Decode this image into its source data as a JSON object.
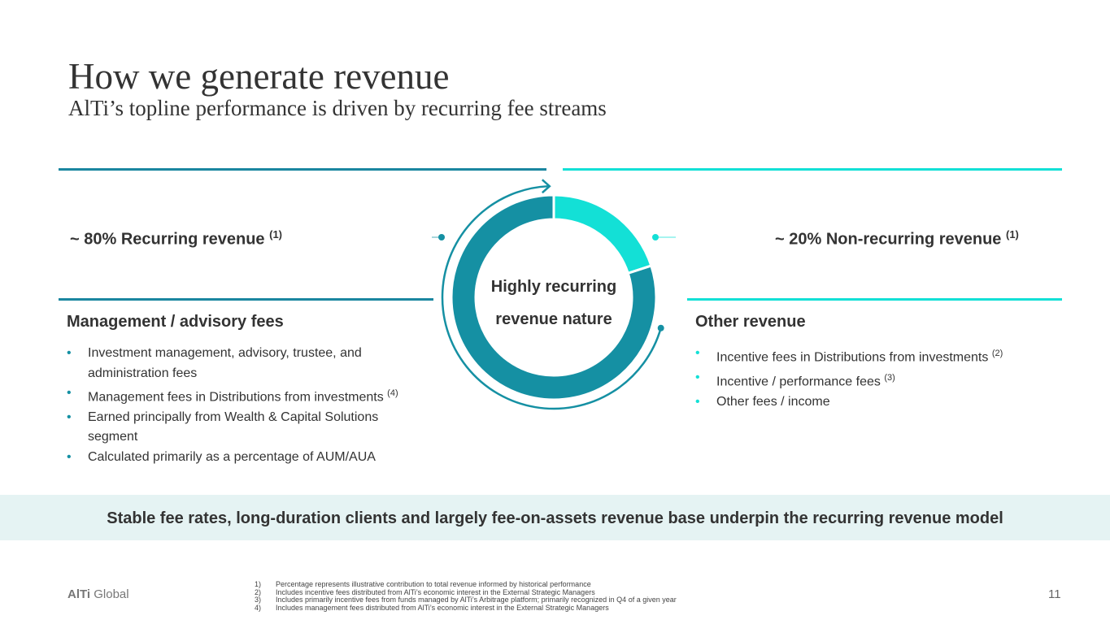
{
  "header": {
    "title": "How we generate revenue",
    "subtitle": "AlTi’s topline performance is driven by recurring fee streams"
  },
  "left": {
    "label": "~ 80% Recurring revenue",
    "label_note": "(1)",
    "heading": "Management / advisory fees",
    "bullets": [
      {
        "text": "Investment management, advisory, trustee, and administration fees"
      },
      {
        "text": "Management fees in Distributions from investments",
        "note": "(4)"
      },
      {
        "text": "Earned principally from Wealth & Capital Solutions segment"
      },
      {
        "text": "Calculated primarily as a percentage of AUM/AUA"
      }
    ]
  },
  "right": {
    "label": "~ 20% Non-recurring revenue",
    "label_note": "(1)",
    "heading": "Other revenue",
    "bullets": [
      {
        "text": "Incentive fees in Distributions from investments",
        "note": "(2)"
      },
      {
        "text": "Incentive / performance fees",
        "note": "(3)"
      },
      {
        "text": "Other fees / income"
      }
    ]
  },
  "donut": {
    "values": [
      20,
      80
    ],
    "colors": [
      "#13e0d6",
      "#1590a3"
    ],
    "center_lines": [
      "Highly recurring",
      "revenue nature"
    ]
  },
  "banner": "Stable fee rates, long-duration clients and largely fee-on-assets revenue base underpin the recurring revenue model",
  "footer": {
    "logo_bold": "AlTi",
    "logo_rest": "Global",
    "page": "11",
    "footnotes": [
      {
        "num": "1)",
        "text": "Percentage represents illustrative contribution to total revenue informed by historical performance"
      },
      {
        "num": "2)",
        "text": "Includes incentive fees distributed from AlTi’s economic interest in the External Strategic Managers"
      },
      {
        "num": "3)",
        "text": "Includes primarily incentive fees from funds managed by AlTi’s Arbitrage platform; primarily recognized in Q4 of a given year"
      },
      {
        "num": "4)",
        "text": "Includes management fees distributed from AlTi’s economic interest in the External Strategic Managers"
      }
    ]
  }
}
